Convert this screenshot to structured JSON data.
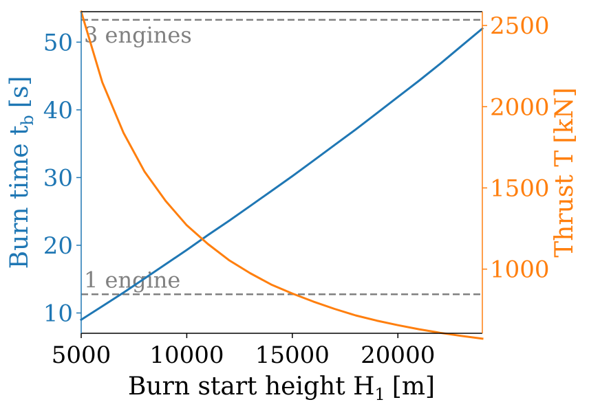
{
  "chart_data": {
    "type": "line",
    "xlabel": "Burn start height H",
    "xlabel_sub": "1",
    "xlabel_unit": "[m]",
    "ylabel_left": "Burn time t",
    "ylabel_left_sub": "b",
    "ylabel_left_unit": "[s]",
    "ylabel_right": "Thrust T",
    "ylabel_right_unit": "[kN]",
    "xlim": [
      5000,
      24000
    ],
    "ylim_left": [
      7.0,
      54.5
    ],
    "ylim_right": [
      605,
      2585
    ],
    "x_ticks": [
      5000,
      10000,
      15000,
      20000
    ],
    "y_left_ticks": [
      10,
      20,
      30,
      40,
      50
    ],
    "y_right_ticks": [
      1000,
      1500,
      2000,
      2500
    ],
    "colors": {
      "left": "#1f77b4",
      "right": "#ff7f0e",
      "reference": "#808080"
    },
    "series": [
      {
        "axis": "left",
        "color": "#1f77b4",
        "x": [
          5000,
          6000,
          7000,
          8000,
          9000,
          10000,
          11000,
          12000,
          13000,
          14000,
          15000,
          16000,
          17000,
          18000,
          19000,
          20000,
          21000,
          22000,
          23000,
          24000
        ],
        "values": [
          9.0,
          11.0,
          13.0,
          15.1,
          17.2,
          19.3,
          21.5,
          23.6,
          25.8,
          28.0,
          30.2,
          32.5,
          34.8,
          37.1,
          39.5,
          41.9,
          44.3,
          46.8,
          49.4,
          52.0
        ]
      },
      {
        "axis": "right",
        "color": "#ff7f0e",
        "x": [
          5000,
          6000,
          7000,
          8000,
          9000,
          10000,
          11000,
          12000,
          13000,
          14000,
          15000,
          16000,
          17000,
          18000,
          19000,
          20000,
          21000,
          22000,
          23000,
          24000
        ],
        "values": [
          2585,
          2150,
          1840,
          1600,
          1420,
          1270,
          1155,
          1055,
          975,
          905,
          850,
          800,
          755,
          715,
          683,
          655,
          630,
          608,
          589,
          572
        ]
      }
    ],
    "reference_lines": [
      {
        "axis": "right",
        "y": 2535,
        "label": "3 engines"
      },
      {
        "axis": "right",
        "y": 845,
        "label": "1 engine"
      }
    ]
  }
}
